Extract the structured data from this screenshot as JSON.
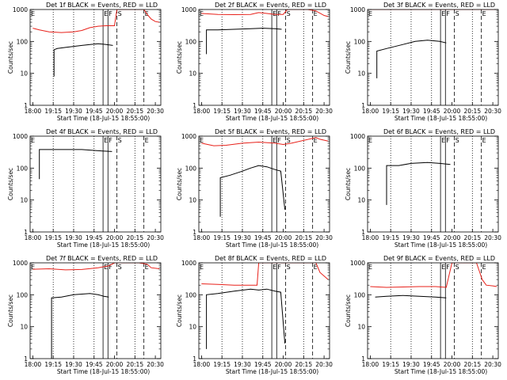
{
  "figure": {
    "ylabel": "Counts/sec",
    "xlabel": "Start Time (18-Jul-15 18:55:00)",
    "x_tick_labels": [
      "18:00",
      "19:15",
      "19:30",
      "19:45",
      "20:00",
      "20:15",
      "20:30"
    ],
    "y_tick_labels": [
      "1",
      "10",
      "100",
      "1000"
    ],
    "marker_labels": [
      "E",
      "F",
      "S",
      "E"
    ],
    "colors": {
      "events": "#000000",
      "lld": "#e8211a",
      "axis": "#000000"
    }
  },
  "chart_data": [
    {
      "type": "line",
      "title": "Det 1f BLACK = Events, RED = LLD",
      "xlim": [
        18.967,
        20.567
      ],
      "ylim": [
        1,
        1000
      ],
      "yscale": "log",
      "series": [
        {
          "name": "Events",
          "x": [
            19.26,
            19.26,
            19.3,
            19.4,
            19.5,
            19.6,
            19.7,
            19.8,
            19.9,
            19.98
          ],
          "y": [
            8,
            55,
            60,
            65,
            70,
            75,
            80,
            85,
            80,
            75
          ]
        },
        {
          "name": "LLD",
          "x": [
            19.0,
            19.08,
            19.2,
            19.35,
            19.5,
            19.6,
            19.7,
            19.8,
            19.9,
            20.0,
            20.03,
            20.1,
            20.36,
            20.4,
            20.45,
            20.5,
            20.55
          ],
          "y": [
            260,
            230,
            200,
            190,
            200,
            220,
            270,
            300,
            310,
            310,
            1000,
            1000,
            1000,
            700,
            500,
            420,
            400
          ]
        }
      ]
    },
    {
      "type": "line",
      "title": "Det 2f BLACK = Events, RED = LLD",
      "xlim": [
        18.967,
        20.567
      ],
      "ylim": [
        1,
        1000
      ],
      "yscale": "log",
      "series": [
        {
          "name": "Events",
          "x": [
            19.06,
            19.06,
            19.2,
            19.4,
            19.6,
            19.75,
            19.9,
            19.98
          ],
          "y": [
            40,
            230,
            230,
            240,
            250,
            260,
            250,
            240
          ]
        },
        {
          "name": "LLD",
          "x": [
            19.0,
            19.2,
            19.4,
            19.6,
            19.7,
            19.8,
            19.9,
            20.0,
            20.05,
            20.3,
            20.4,
            20.5,
            20.55
          ],
          "y": [
            750,
            700,
            690,
            700,
            800,
            750,
            700,
            700,
            1000,
            1000,
            900,
            650,
            600
          ]
        }
      ]
    },
    {
      "type": "line",
      "title": "Det 3f BLACK = Events, RED = LLD",
      "xlim": [
        18.967,
        20.567
      ],
      "ylim": [
        1,
        1000
      ],
      "yscale": "log",
      "series": [
        {
          "name": "Events",
          "x": [
            19.08,
            19.08,
            19.2,
            19.4,
            19.55,
            19.7,
            19.85,
            19.93
          ],
          "y": [
            7,
            50,
            60,
            80,
            100,
            110,
            100,
            90
          ]
        },
        {
          "name": "LLD",
          "x": [
            19.0,
            19.3,
            19.6,
            19.8,
            19.95,
            20.1,
            20.3,
            20.55
          ],
          "y": [
            1000,
            1000,
            1000,
            1000,
            1000,
            1000,
            1000,
            1000
          ]
        }
      ]
    },
    {
      "type": "line",
      "title": "Det 4f BLACK = Events, RED = LLD",
      "xlim": [
        18.967,
        20.567
      ],
      "ylim": [
        1,
        1000
      ],
      "yscale": "log",
      "series": [
        {
          "name": "Events",
          "x": [
            19.08,
            19.08,
            19.2,
            19.4,
            19.6,
            19.8,
            19.97
          ],
          "y": [
            45,
            380,
            380,
            380,
            380,
            350,
            330
          ]
        },
        {
          "name": "LLD",
          "x": [
            19.0,
            19.3,
            19.6,
            19.8,
            19.95,
            20.0,
            20.1,
            20.25,
            20.35,
            20.43,
            20.47,
            20.55
          ],
          "y": [
            1900,
            1900,
            1900,
            1900,
            1900,
            8000,
            9000,
            7000,
            5000,
            2500,
            1800,
            1800
          ]
        }
      ]
    },
    {
      "type": "line",
      "title": "Det 5f BLACK = Events, RED = LLD",
      "xlim": [
        18.967,
        20.567
      ],
      "ylim": [
        1,
        1000
      ],
      "yscale": "log",
      "series": [
        {
          "name": "Events",
          "x": [
            19.23,
            19.23,
            19.35,
            19.5,
            19.6,
            19.7,
            19.8,
            19.9,
            19.97,
            20.02
          ],
          "y": [
            3,
            50,
            60,
            80,
            100,
            120,
            110,
            90,
            80,
            5
          ]
        },
        {
          "name": "LLD",
          "x": [
            19.0,
            19.15,
            19.3,
            19.5,
            19.7,
            19.9,
            20.0,
            20.1,
            20.4,
            20.45,
            20.55
          ],
          "y": [
            600,
            500,
            520,
            600,
            650,
            600,
            550,
            600,
            900,
            800,
            700
          ]
        }
      ]
    },
    {
      "type": "line",
      "title": "Det 6f BLACK = Events, RED = LLD",
      "xlim": [
        18.967,
        20.567
      ],
      "ylim": [
        1,
        1000
      ],
      "yscale": "log",
      "series": [
        {
          "name": "Events",
          "x": [
            19.2,
            19.2,
            19.35,
            19.5,
            19.7,
            19.85,
            19.98
          ],
          "y": [
            7,
            120,
            120,
            140,
            150,
            140,
            130
          ]
        }
      ]
    },
    {
      "type": "line",
      "title": "Det 7f BLACK = Events, RED = LLD",
      "xlim": [
        18.967,
        20.567
      ],
      "ylim": [
        1,
        1000
      ],
      "yscale": "log",
      "series": [
        {
          "name": "Events",
          "x": [
            19.23,
            19.23,
            19.35,
            19.5,
            19.7,
            19.8,
            19.87,
            19.93
          ],
          "y": [
            1,
            80,
            85,
            100,
            110,
            100,
            90,
            85
          ]
        },
        {
          "name": "LLD",
          "x": [
            19.0,
            19.2,
            19.4,
            19.6,
            19.8,
            19.93,
            20.0,
            20.3,
            20.4,
            20.45,
            20.55
          ],
          "y": [
            630,
            650,
            600,
            620,
            700,
            800,
            1000,
            1000,
            900,
            700,
            650
          ]
        }
      ]
    },
    {
      "type": "line",
      "title": "Det 8f BLACK = Events, RED = LLD",
      "xlim": [
        18.967,
        20.567
      ],
      "ylim": [
        1,
        1000
      ],
      "yscale": "log",
      "series": [
        {
          "name": "Events",
          "x": [
            19.06,
            19.06,
            19.2,
            19.4,
            19.6,
            19.7,
            19.8,
            19.9,
            19.97,
            20.02
          ],
          "y": [
            2,
            100,
            110,
            130,
            150,
            140,
            150,
            130,
            120,
            3
          ]
        },
        {
          "name": "LLD",
          "x": [
            19.0,
            19.2,
            19.4,
            19.6,
            19.68,
            19.7,
            19.85,
            19.97,
            20.02,
            20.4,
            20.45,
            20.55
          ],
          "y": [
            220,
            210,
            200,
            200,
            200,
            1000,
            1000,
            1000,
            1000,
            1000,
            500,
            300
          ]
        }
      ]
    },
    {
      "type": "line",
      "title": "Det 9f BLACK = Events, RED = LLD",
      "xlim": [
        18.967,
        20.567
      ],
      "ylim": [
        1,
        1000
      ],
      "yscale": "log",
      "series": [
        {
          "name": "Events",
          "x": [
            19.06,
            19.2,
            19.4,
            19.6,
            19.8,
            19.93
          ],
          "y": [
            85,
            90,
            95,
            90,
            85,
            80
          ]
        },
        {
          "name": "LLD",
          "x": [
            19.0,
            19.2,
            19.4,
            19.6,
            19.8,
            19.93,
            20.0,
            20.3,
            20.37,
            20.42,
            20.5,
            20.55
          ],
          "y": [
            180,
            170,
            175,
            180,
            180,
            170,
            1000,
            1000,
            300,
            200,
            190,
            180
          ]
        }
      ]
    }
  ]
}
